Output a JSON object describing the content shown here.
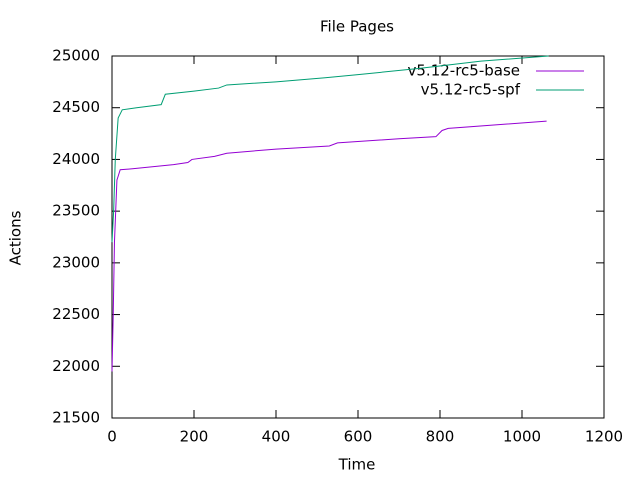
{
  "chart_data": {
    "type": "line",
    "title": "File Pages",
    "x_label": "Time",
    "y_label": "Actions",
    "xlim": [
      0,
      1200
    ],
    "xticks": [
      0,
      200,
      400,
      600,
      800,
      1000,
      1200
    ],
    "ylim": [
      21500,
      25000
    ],
    "yticks": [
      21500,
      22000,
      22500,
      23000,
      23500,
      24000,
      24500,
      25000
    ],
    "legend": "top-right",
    "series": [
      {
        "name": "v5.12-rc5-base",
        "color": "#9400d3",
        "x": [
          0,
          3,
          6,
          9,
          12,
          20,
          50,
          150,
          185,
          195,
          250,
          280,
          400,
          530,
          550,
          700,
          790,
          805,
          820,
          1060
        ],
        "values": [
          21950,
          22500,
          23200,
          23500,
          23800,
          23900,
          23910,
          23950,
          23970,
          24000,
          24030,
          24060,
          24100,
          24130,
          24160,
          24200,
          24220,
          24280,
          24300,
          24370
        ]
      },
      {
        "name": "v5.12-rc5-spf",
        "color": "#009e73",
        "x": [
          0,
          4,
          8,
          15,
          25,
          60,
          120,
          130,
          200,
          260,
          280,
          400,
          520,
          600,
          750,
          900,
          1065
        ],
        "values": [
          23200,
          23500,
          24000,
          24400,
          24480,
          24500,
          24530,
          24630,
          24660,
          24690,
          24720,
          24750,
          24790,
          24820,
          24880,
          24950,
          25000
        ]
      }
    ]
  }
}
